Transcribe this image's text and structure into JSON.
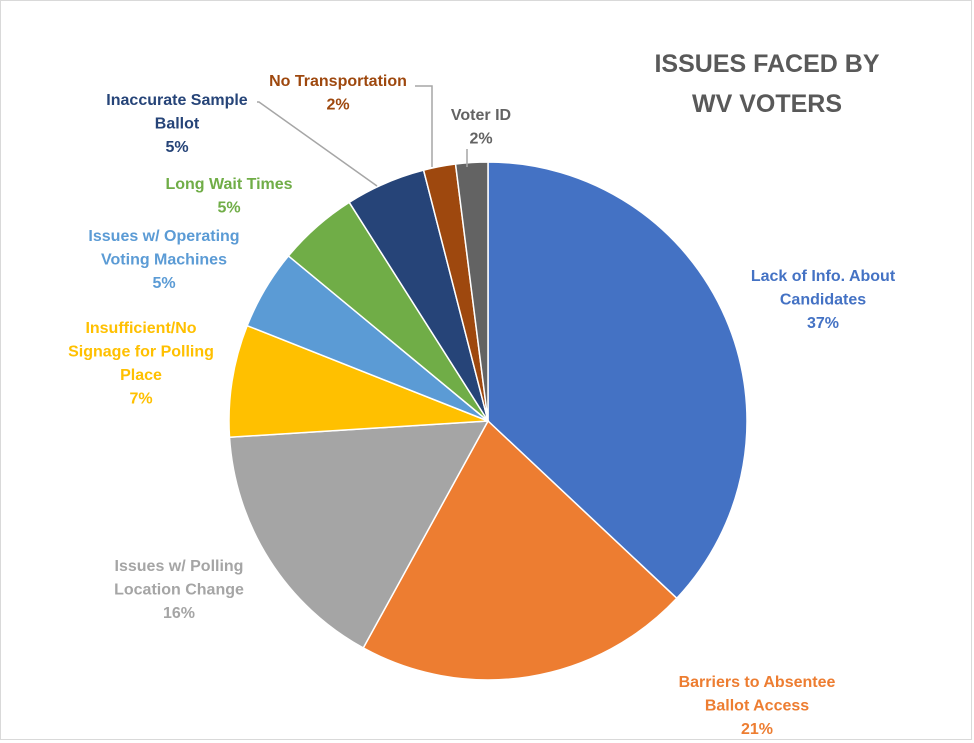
{
  "chart_data": {
    "type": "pie",
    "title": [
      "ISSUES FACED BY",
      "WV VOTERS"
    ],
    "start_angle_deg": 0,
    "direction": "clockwise",
    "slices": [
      {
        "label": [
          "Lack of Info. About",
          "Candidates"
        ],
        "value": 37,
        "pct": "37%",
        "color": "#4472c4"
      },
      {
        "label": [
          "Barriers to Absentee",
          "Ballot Access"
        ],
        "value": 21,
        "pct": "21%",
        "color": "#ed7d31"
      },
      {
        "label": [
          "Issues w/ Polling",
          "Location Change"
        ],
        "value": 16,
        "pct": "16%",
        "color": "#a5a5a5"
      },
      {
        "label": [
          "Insufficient/No",
          "Signage for Polling",
          "Place"
        ],
        "value": 7,
        "pct": "7%",
        "color": "#ffc000"
      },
      {
        "label": [
          "Issues w/ Operating",
          "Voting Machines"
        ],
        "value": 5,
        "pct": "5%",
        "color": "#5b9bd5"
      },
      {
        "label": [
          "Long Wait Times"
        ],
        "value": 5,
        "pct": "5%",
        "color": "#70ad47"
      },
      {
        "label": [
          "Inaccurate Sample",
          "Ballot"
        ],
        "value": 5,
        "pct": "5%",
        "color": "#264478"
      },
      {
        "label": [
          "No Transportation"
        ],
        "value": 2,
        "pct": "2%",
        "color": "#9e480e"
      },
      {
        "label": [
          "Voter ID"
        ],
        "value": 2,
        "pct": "2%",
        "color": "#636363"
      }
    ]
  }
}
